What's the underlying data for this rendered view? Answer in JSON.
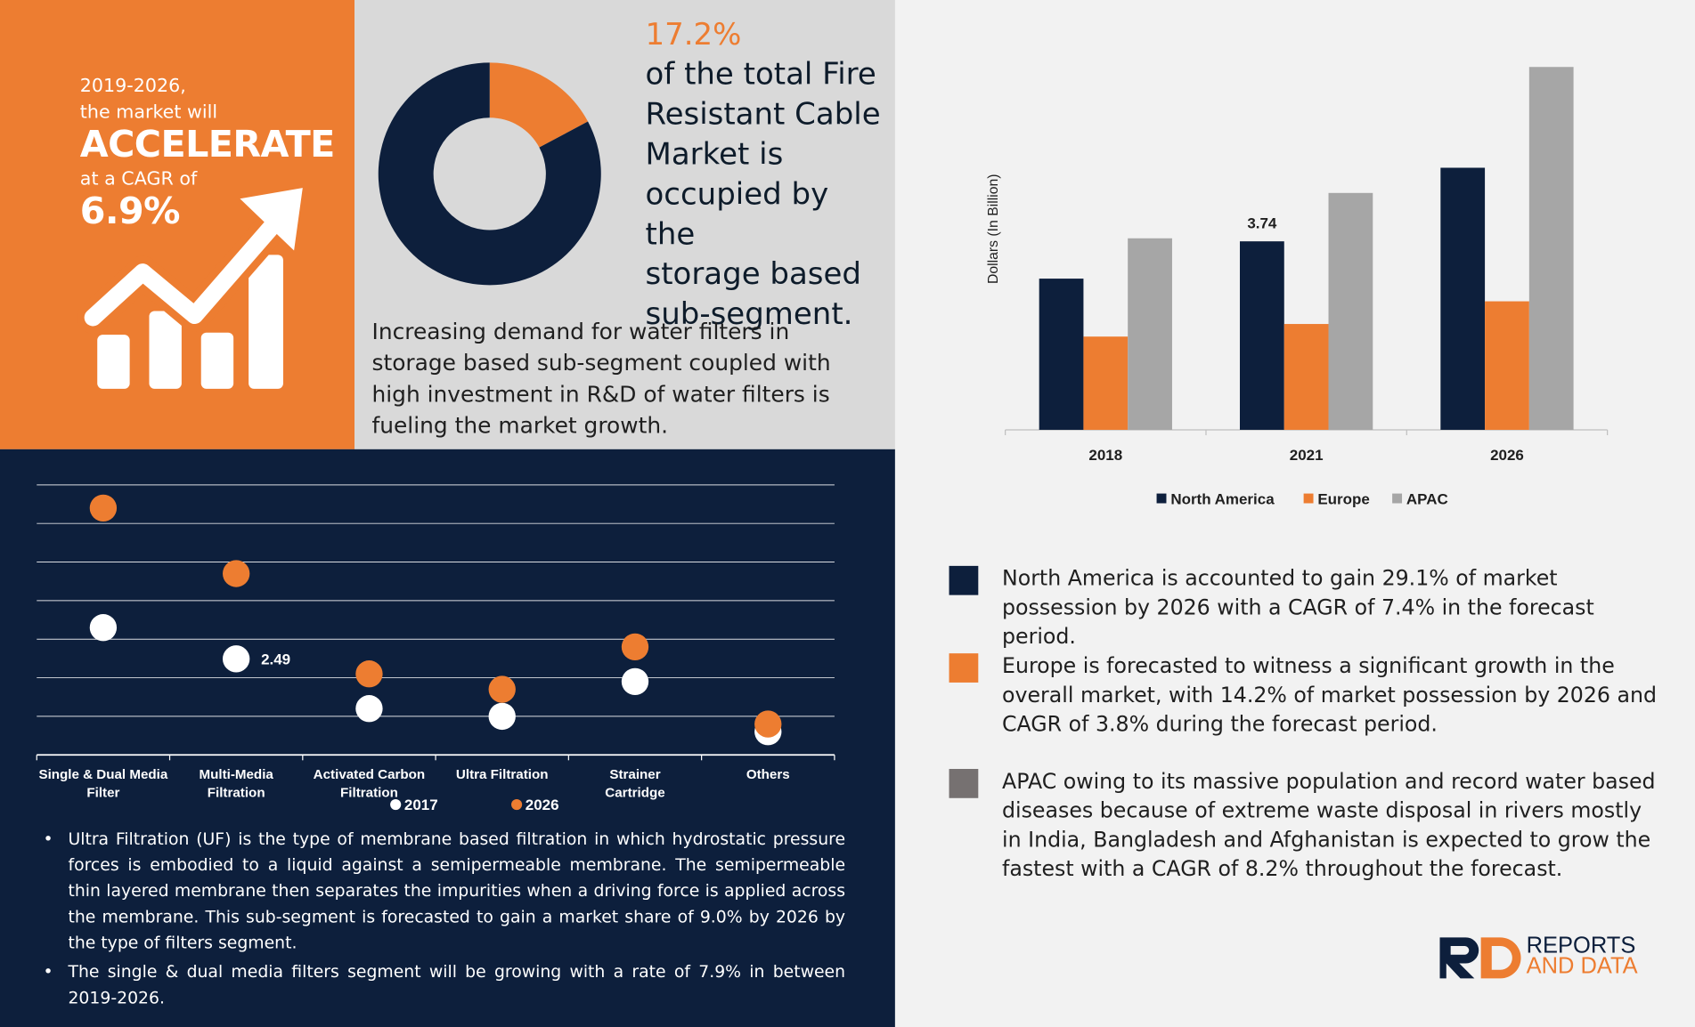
{
  "headline": {
    "years": "2019-2026,",
    "market_will": "the market will",
    "accelerate": "ACCELERATE",
    "cagr_of": "at a CAGR of",
    "cagr_value": "6.9%",
    "icon": "growth-chart-arrow-icon"
  },
  "donut": {
    "share_text": "17.2%",
    "description_lines": [
      "of the total Fire",
      "Resistant Cable",
      "Market is",
      "occupied by the",
      "storage based",
      "sub-segment."
    ],
    "commentary": "Increasing demand for water filters in storage based sub-segment coupled with high investment in R&D of water filters is fueling the market growth."
  },
  "bullets": [
    "Ultra Filtration (UF) is the type of membrane based filtration in which hydrostatic pressure forces is embodied to a liquid against a semipermeable membrane. The semipermeable thin layered membrane then separates the impurities when a driving force is applied across the membrane. This sub-segment is forecasted to gain a market share of 9.0% by 2026 by the type of filters segment.",
    "The single & dual media filters segment will be growing with a rate of 7.9% in between 2019-2026."
  ],
  "notes": [
    {
      "color": "#0d1f3c",
      "text": "North America is accounted to gain 29.1% of market possession by 2026 with a CAGR of 7.4% in the forecast period."
    },
    {
      "color": "#ed7d31",
      "text": "Europe is forecasted to witness a significant growth in the overall market, with 14.2% of market possession by 2026 and CAGR of 3.8% during the forecast period."
    },
    {
      "color": "#767171",
      "text": "APAC owing to its massive population and record water based diseases because of extreme waste disposal in rivers mostly in India, Bangladesh and Afghanistan is expected to grow the fastest with a CAGR of 8.2% throughout the forecast."
    }
  ],
  "logo": {
    "line1": "REPORTS",
    "line2": "AND DATA",
    "mark": "RD"
  },
  "colors": {
    "orange": "#ed7d31",
    "navy": "#0d1f3c",
    "grey": "#a6a6a6",
    "dark_grey": "#767171"
  },
  "chart_data": [
    {
      "type": "pie",
      "title": "",
      "slices": [
        {
          "name": "",
          "value": 17.2,
          "color": "#ed7d31"
        },
        {
          "name": "",
          "value": 82.8,
          "color": "#0d1f3c"
        }
      ],
      "donut": true
    },
    {
      "type": "scatter",
      "title": "",
      "categories": [
        "Single & Dual Media Filter",
        "Multi-Media Filtration",
        "Activated Carbon Filtration",
        "Ultra Filtration",
        "Strainer Cartridge",
        "Others"
      ],
      "series": [
        {
          "name": "2017",
          "color": "#ffffff",
          "values": [
            3.3,
            2.49,
            1.2,
            1.0,
            1.9,
            0.6
          ]
        },
        {
          "name": "2026",
          "color": "#ed7d31",
          "values": [
            6.4,
            4.7,
            2.1,
            1.7,
            2.8,
            0.8
          ]
        }
      ],
      "data_labels": [
        {
          "series": "2017",
          "category": "Multi-Media Filtration",
          "text": "2.49"
        }
      ],
      "ylim": [
        0,
        7
      ],
      "grid": true,
      "legend": "bottom"
    },
    {
      "type": "bar",
      "title": "",
      "categories": [
        "2018",
        "2021",
        "2026"
      ],
      "series": [
        {
          "name": "North America",
          "color": "#0d1f3c",
          "values": [
            3.0,
            3.74,
            5.2
          ]
        },
        {
          "name": "Europe",
          "color": "#ed7d31",
          "values": [
            1.85,
            2.1,
            2.55
          ]
        },
        {
          "name": "APAC",
          "color": "#a6a6a6",
          "values": [
            3.8,
            4.7,
            7.2
          ]
        }
      ],
      "data_labels": [
        {
          "series": "North America",
          "category": "2021",
          "text": "3.74"
        }
      ],
      "ylabel": "Dollars (In Billion)",
      "ylim": [
        0,
        7.5
      ],
      "grid": false,
      "legend": "bottom"
    }
  ]
}
